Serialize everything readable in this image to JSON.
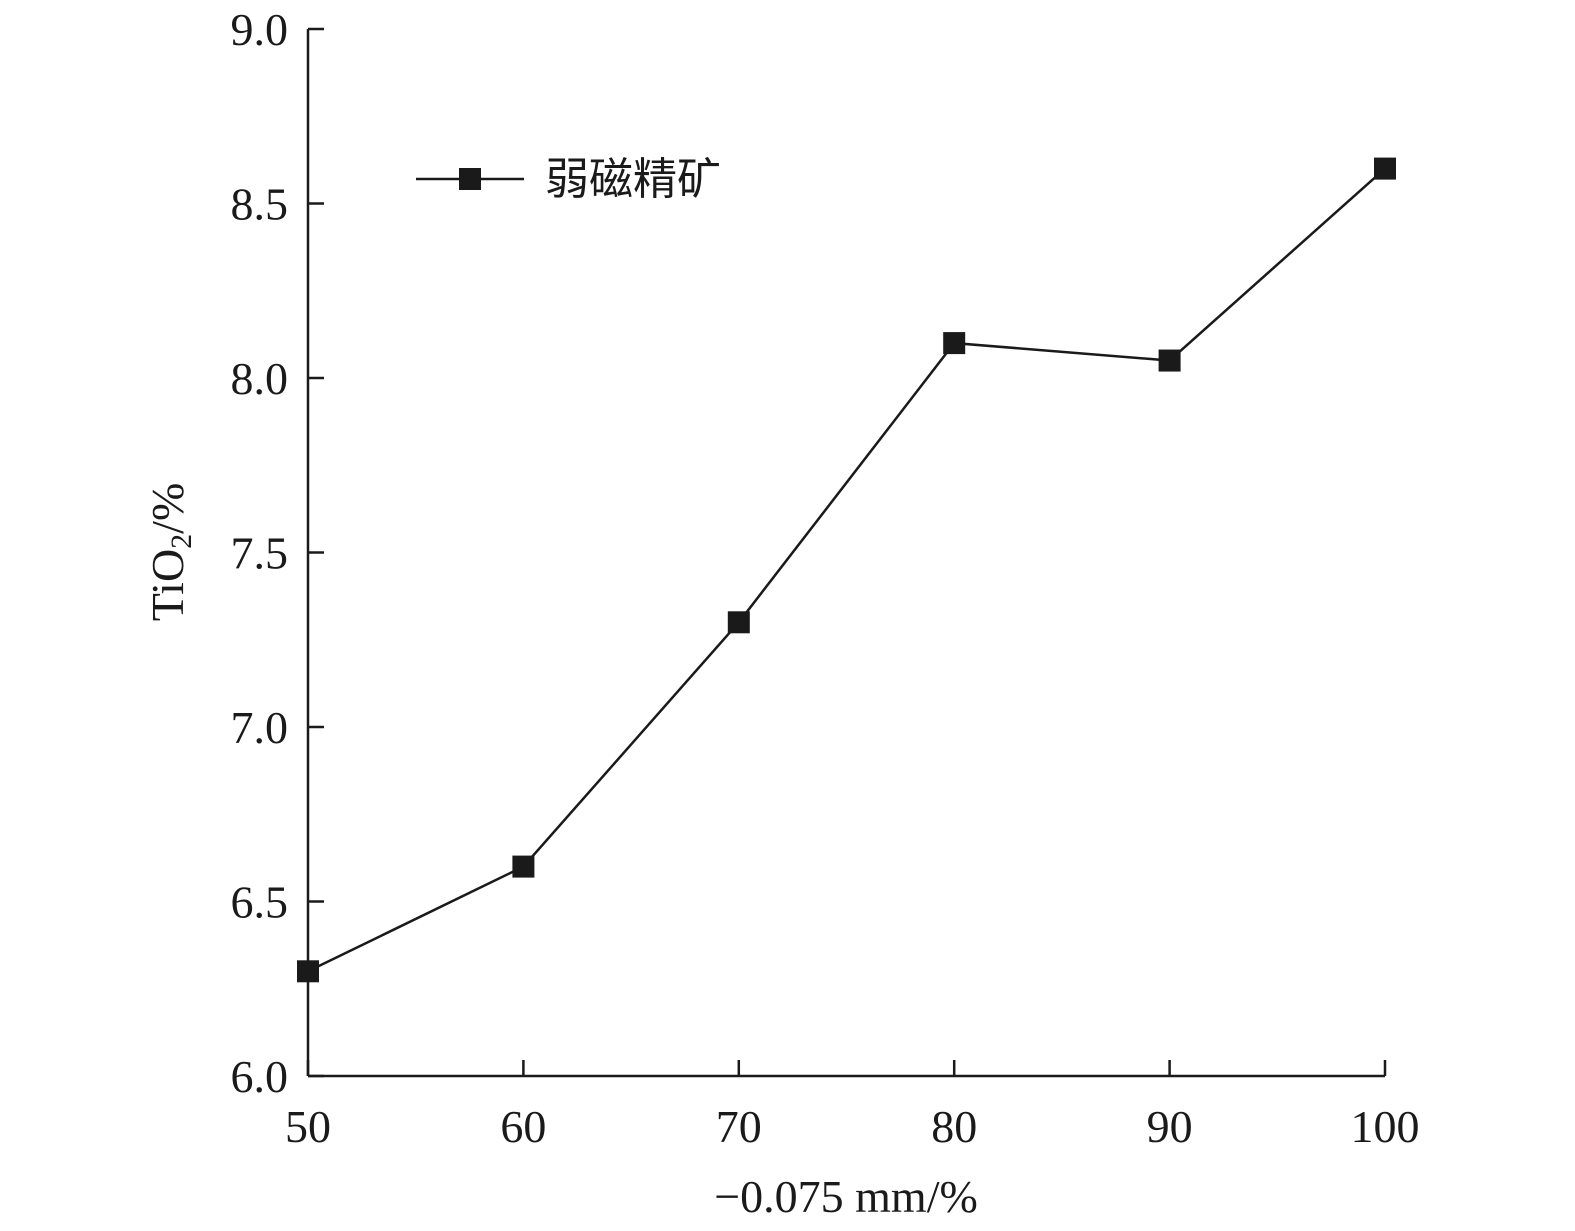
{
  "chart_data": {
    "type": "line",
    "xlabel": "−0.075 mm/%",
    "ylabel_main": "TiO",
    "ylabel_sub": "2",
    "ylabel_unit": "/%",
    "x_ticks": [
      "50",
      "60",
      "70",
      "80",
      "90",
      "100"
    ],
    "y_ticks": [
      "6.0",
      "6.5",
      "7.0",
      "7.5",
      "8.0",
      "8.5",
      "9.0"
    ],
    "xlim": [
      50,
      100
    ],
    "ylim": [
      6.0,
      9.0
    ],
    "grid": false,
    "legend_position": "top-left",
    "series": [
      {
        "name": "弱磁精矿",
        "marker": "square",
        "color": "#1a1a1a",
        "x": [
          50,
          60,
          70,
          80,
          90,
          100
        ],
        "y": [
          6.3,
          6.6,
          7.3,
          8.1,
          8.05,
          8.6
        ]
      }
    ]
  }
}
